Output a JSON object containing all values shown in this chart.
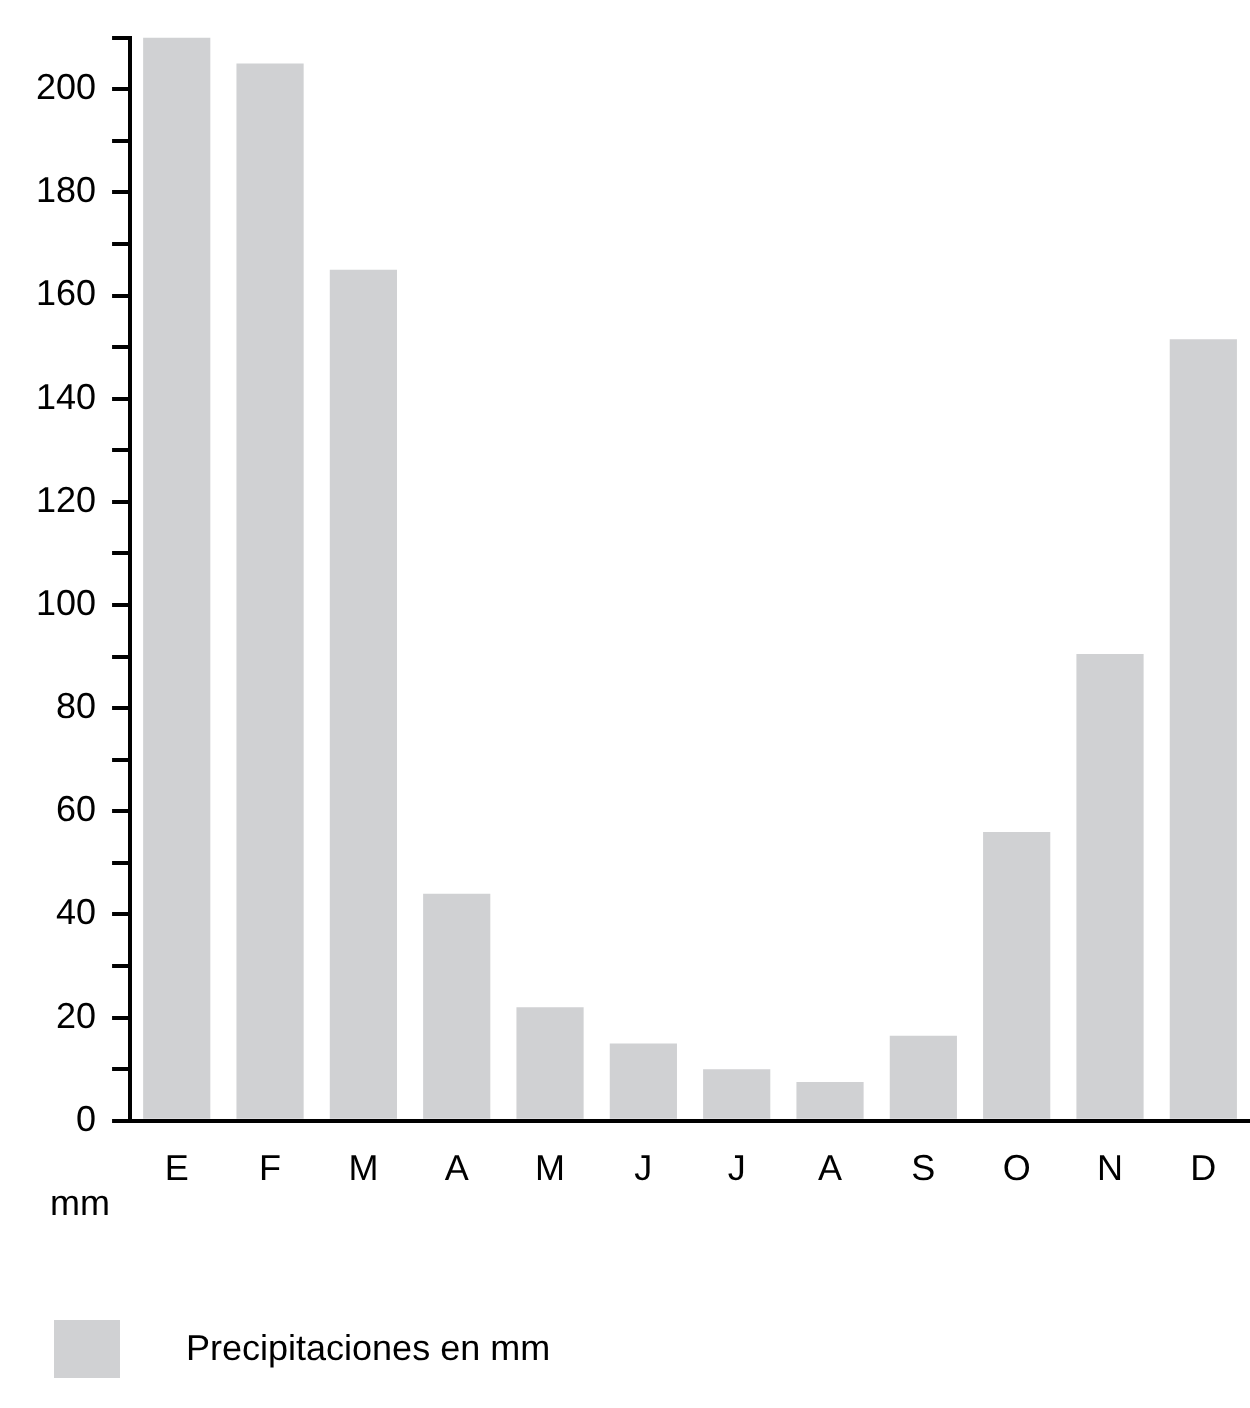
{
  "chart_data": {
    "type": "bar",
    "ylabel": "mm",
    "categories": [
      "E",
      "F",
      "M",
      "A",
      "M",
      "J",
      "J",
      "A",
      "S",
      "O",
      "N",
      "D"
    ],
    "series": [
      {
        "name": "Precipitaciones en mm",
        "color": "#d0d1d3",
        "values": [
          210,
          205,
          165,
          44,
          22,
          15,
          10,
          7.5,
          16.5,
          56,
          90.5,
          151.5
        ]
      }
    ],
    "ylim": [
      0,
      210
    ],
    "yticks": [
      0,
      {
        "value": 10,
        "label": null
      },
      20,
      {
        "value": 30,
        "label": null
      },
      40,
      {
        "value": 50,
        "label": null
      },
      60,
      {
        "value": 70,
        "label": null
      },
      80,
      {
        "value": 90,
        "label": null
      },
      100,
      {
        "value": 110,
        "label": null
      },
      120,
      {
        "value": 130,
        "label": null
      },
      140,
      {
        "value": 150,
        "label": null
      },
      160,
      {
        "value": 170,
        "label": null
      },
      180,
      {
        "value": 190,
        "label": null
      },
      200,
      {
        "value": 210,
        "label": null
      }
    ],
    "grid": false,
    "legend": "bottom left"
  }
}
